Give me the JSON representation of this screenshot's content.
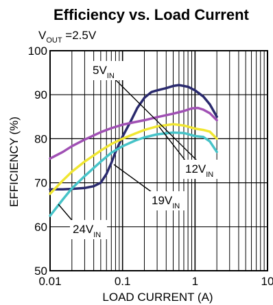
{
  "chart_data": {
    "type": "line",
    "title": "Efficiency vs. Load Current",
    "subtitle": {
      "main": "V",
      "sub": "OUT",
      "rest": " =2.5V"
    },
    "xlabel": "LOAD CURRENT (A)",
    "ylabel": "EFFICIENCY (%)",
    "x_scale": "log",
    "xlim": [
      0.01,
      10
    ],
    "ylim": [
      50,
      100
    ],
    "x_ticks": [
      "0.01",
      "0.1",
      "1",
      "10"
    ],
    "y_ticks": [
      "50",
      "60",
      "70",
      "80",
      "90",
      "100"
    ],
    "grid": true,
    "series": [
      {
        "name": "5V",
        "label_main": "5V",
        "label_sub": "IN",
        "color": "#2a2a6e",
        "x": [
          0.01,
          0.015,
          0.02,
          0.03,
          0.04,
          0.05,
          0.06,
          0.07,
          0.08,
          0.1,
          0.13,
          0.16,
          0.2,
          0.25,
          0.3,
          0.4,
          0.5,
          0.6,
          0.8,
          1.0,
          1.3,
          1.6,
          2.0
        ],
        "y": [
          68.5,
          68.5,
          68.6,
          68.8,
          69.2,
          70.0,
          72.0,
          74.5,
          77.0,
          80.5,
          84.0,
          87.0,
          89.3,
          90.6,
          91.0,
          91.5,
          92.0,
          92.2,
          91.8,
          91.0,
          89.6,
          87.8,
          85.0
        ]
      },
      {
        "name": "12V",
        "label_main": "12V",
        "label_sub": "IN",
        "color": "#a050b4",
        "x": [
          0.01,
          0.015,
          0.02,
          0.03,
          0.05,
          0.07,
          0.1,
          0.15,
          0.2,
          0.3,
          0.5,
          0.7,
          0.9,
          1.1,
          1.3,
          1.6,
          2.0
        ],
        "y": [
          75.5,
          77.0,
          78.3,
          79.8,
          81.5,
          82.4,
          83.2,
          83.8,
          84.2,
          84.9,
          85.7,
          86.3,
          86.9,
          87.0,
          86.6,
          85.8,
          84.2
        ]
      },
      {
        "name": "19V",
        "label_main": "19V",
        "label_sub": "IN",
        "color": "#f0e632",
        "x": [
          0.01,
          0.015,
          0.02,
          0.03,
          0.05,
          0.07,
          0.1,
          0.15,
          0.2,
          0.3,
          0.5,
          0.7,
          1.0,
          1.3,
          1.6,
          2.0
        ],
        "y": [
          67.5,
          70.5,
          72.5,
          74.8,
          77.3,
          78.8,
          80.0,
          81.2,
          82.0,
          82.8,
          83.3,
          83.0,
          82.3,
          82.0,
          81.6,
          80.0
        ]
      },
      {
        "name": "24V",
        "label_main": "24V",
        "label_sub": "IN",
        "color": "#46c3c8",
        "x": [
          0.01,
          0.015,
          0.02,
          0.03,
          0.05,
          0.07,
          0.1,
          0.15,
          0.2,
          0.3,
          0.5,
          0.7,
          1.0,
          1.3,
          1.6,
          2.0
        ],
        "y": [
          62.5,
          66.2,
          68.7,
          71.5,
          74.8,
          76.8,
          78.3,
          79.6,
          80.3,
          81.0,
          81.4,
          81.3,
          80.6,
          80.4,
          79.4,
          77.0
        ]
      }
    ]
  }
}
